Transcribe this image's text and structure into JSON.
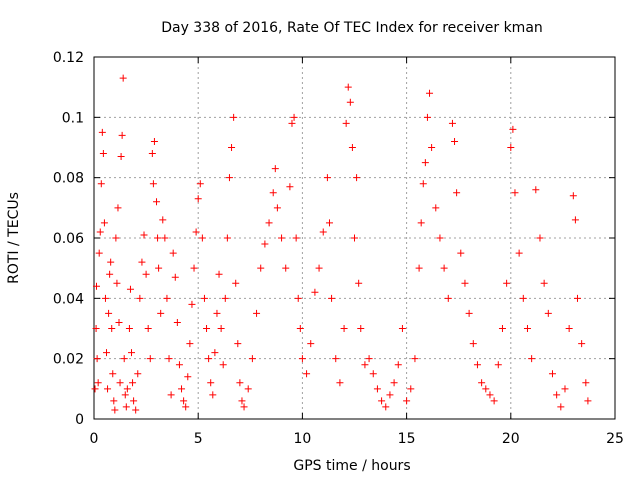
{
  "chart_data": {
    "type": "scatter",
    "title": "Day 338 of 2016, Rate Of TEC Index for receiver kman",
    "xlabel": "GPS time / hours",
    "ylabel": "ROTI / TECUs",
    "xlim": [
      0,
      25
    ],
    "ylim": [
      0,
      0.12
    ],
    "xticks": [
      0,
      5,
      10,
      15,
      20,
      25
    ],
    "xtick_labels": [
      "0",
      "5",
      "10",
      "15",
      "20",
      "25"
    ],
    "yticks": [
      0,
      0.02,
      0.04,
      0.06,
      0.08,
      0.1,
      0.12
    ],
    "ytick_labels": [
      "0",
      "0.02",
      "0.04",
      "0.06",
      "0.08",
      "0.1",
      "0.12"
    ],
    "grid": true,
    "legend": "none",
    "marker": "+",
    "color": "#ff0000",
    "points": [
      [
        0.05,
        0.01
      ],
      [
        0.1,
        0.03
      ],
      [
        0.12,
        0.044
      ],
      [
        0.15,
        0.02
      ],
      [
        0.2,
        0.012
      ],
      [
        0.25,
        0.055
      ],
      [
        0.3,
        0.062
      ],
      [
        0.35,
        0.078
      ],
      [
        0.4,
        0.095
      ],
      [
        0.45,
        0.088
      ],
      [
        0.5,
        0.065
      ],
      [
        0.55,
        0.04
      ],
      [
        0.6,
        0.022
      ],
      [
        0.65,
        0.01
      ],
      [
        0.7,
        0.035
      ],
      [
        0.75,
        0.048
      ],
      [
        0.8,
        0.052
      ],
      [
        0.85,
        0.03
      ],
      [
        0.9,
        0.015
      ],
      [
        0.95,
        0.006
      ],
      [
        1.0,
        0.003
      ],
      [
        1.05,
        0.06
      ],
      [
        1.1,
        0.045
      ],
      [
        1.15,
        0.07
      ],
      [
        1.2,
        0.032
      ],
      [
        1.25,
        0.012
      ],
      [
        1.3,
        0.087
      ],
      [
        1.35,
        0.094
      ],
      [
        1.4,
        0.113
      ],
      [
        1.45,
        0.02
      ],
      [
        1.5,
        0.008
      ],
      [
        1.55,
        0.004
      ],
      [
        1.6,
        0.01
      ],
      [
        1.7,
        0.03
      ],
      [
        1.75,
        0.043
      ],
      [
        1.8,
        0.022
      ],
      [
        1.85,
        0.012
      ],
      [
        1.9,
        0.006
      ],
      [
        2.0,
        0.003
      ],
      [
        2.1,
        0.015
      ],
      [
        2.2,
        0.04
      ],
      [
        2.3,
        0.052
      ],
      [
        2.4,
        0.061
      ],
      [
        2.5,
        0.048
      ],
      [
        2.6,
        0.03
      ],
      [
        2.7,
        0.02
      ],
      [
        2.8,
        0.088
      ],
      [
        2.85,
        0.078
      ],
      [
        2.9,
        0.092
      ],
      [
        3.0,
        0.072
      ],
      [
        3.05,
        0.06
      ],
      [
        3.1,
        0.05
      ],
      [
        3.2,
        0.035
      ],
      [
        3.3,
        0.066
      ],
      [
        3.4,
        0.06
      ],
      [
        3.5,
        0.04
      ],
      [
        3.6,
        0.02
      ],
      [
        3.7,
        0.008
      ],
      [
        3.8,
        0.055
      ],
      [
        3.9,
        0.047
      ],
      [
        4.0,
        0.032
      ],
      [
        4.1,
        0.018
      ],
      [
        4.2,
        0.01
      ],
      [
        4.3,
        0.006
      ],
      [
        4.4,
        0.004
      ],
      [
        4.5,
        0.014
      ],
      [
        4.6,
        0.025
      ],
      [
        4.7,
        0.038
      ],
      [
        4.8,
        0.05
      ],
      [
        4.9,
        0.062
      ],
      [
        5.0,
        0.073
      ],
      [
        5.1,
        0.078
      ],
      [
        5.2,
        0.06
      ],
      [
        5.3,
        0.04
      ],
      [
        5.4,
        0.03
      ],
      [
        5.5,
        0.02
      ],
      [
        5.6,
        0.012
      ],
      [
        5.7,
        0.008
      ],
      [
        5.8,
        0.022
      ],
      [
        5.9,
        0.035
      ],
      [
        6.0,
        0.048
      ],
      [
        6.1,
        0.03
      ],
      [
        6.2,
        0.018
      ],
      [
        6.3,
        0.04
      ],
      [
        6.4,
        0.06
      ],
      [
        6.5,
        0.08
      ],
      [
        6.6,
        0.09
      ],
      [
        6.7,
        0.1
      ],
      [
        6.8,
        0.045
      ],
      [
        6.9,
        0.025
      ],
      [
        7.0,
        0.012
      ],
      [
        7.1,
        0.006
      ],
      [
        7.2,
        0.004
      ],
      [
        7.4,
        0.01
      ],
      [
        7.6,
        0.02
      ],
      [
        7.8,
        0.035
      ],
      [
        8.0,
        0.05
      ],
      [
        8.2,
        0.058
      ],
      [
        8.4,
        0.065
      ],
      [
        8.6,
        0.075
      ],
      [
        8.7,
        0.083
      ],
      [
        8.8,
        0.07
      ],
      [
        9.0,
        0.06
      ],
      [
        9.2,
        0.05
      ],
      [
        9.4,
        0.077
      ],
      [
        9.5,
        0.098
      ],
      [
        9.6,
        0.1
      ],
      [
        9.7,
        0.06
      ],
      [
        9.8,
        0.04
      ],
      [
        9.9,
        0.03
      ],
      [
        10.0,
        0.02
      ],
      [
        10.2,
        0.015
      ],
      [
        10.4,
        0.025
      ],
      [
        10.6,
        0.042
      ],
      [
        10.8,
        0.05
      ],
      [
        11.0,
        0.062
      ],
      [
        11.2,
        0.08
      ],
      [
        11.3,
        0.065
      ],
      [
        11.4,
        0.04
      ],
      [
        11.6,
        0.02
      ],
      [
        11.8,
        0.012
      ],
      [
        12.0,
        0.03
      ],
      [
        12.1,
        0.098
      ],
      [
        12.2,
        0.11
      ],
      [
        12.3,
        0.105
      ],
      [
        12.4,
        0.09
      ],
      [
        12.5,
        0.06
      ],
      [
        12.6,
        0.08
      ],
      [
        12.7,
        0.045
      ],
      [
        12.8,
        0.03
      ],
      [
        13.0,
        0.018
      ],
      [
        13.2,
        0.02
      ],
      [
        13.4,
        0.015
      ],
      [
        13.6,
        0.01
      ],
      [
        13.8,
        0.006
      ],
      [
        14.0,
        0.004
      ],
      [
        14.2,
        0.008
      ],
      [
        14.4,
        0.012
      ],
      [
        14.6,
        0.018
      ],
      [
        14.8,
        0.03
      ],
      [
        15.0,
        0.006
      ],
      [
        15.2,
        0.01
      ],
      [
        15.4,
        0.02
      ],
      [
        15.6,
        0.05
      ],
      [
        15.7,
        0.065
      ],
      [
        15.8,
        0.078
      ],
      [
        15.9,
        0.085
      ],
      [
        16.0,
        0.1
      ],
      [
        16.1,
        0.108
      ],
      [
        16.2,
        0.09
      ],
      [
        16.4,
        0.07
      ],
      [
        16.6,
        0.06
      ],
      [
        16.8,
        0.05
      ],
      [
        17.0,
        0.04
      ],
      [
        17.2,
        0.098
      ],
      [
        17.3,
        0.092
      ],
      [
        17.4,
        0.075
      ],
      [
        17.6,
        0.055
      ],
      [
        17.8,
        0.045
      ],
      [
        18.0,
        0.035
      ],
      [
        18.2,
        0.025
      ],
      [
        18.4,
        0.018
      ],
      [
        18.6,
        0.012
      ],
      [
        18.8,
        0.01
      ],
      [
        19.0,
        0.008
      ],
      [
        19.2,
        0.006
      ],
      [
        19.4,
        0.018
      ],
      [
        19.6,
        0.03
      ],
      [
        19.8,
        0.045
      ],
      [
        20.0,
        0.09
      ],
      [
        20.1,
        0.096
      ],
      [
        20.2,
        0.075
      ],
      [
        20.4,
        0.055
      ],
      [
        20.6,
        0.04
      ],
      [
        20.8,
        0.03
      ],
      [
        21.0,
        0.02
      ],
      [
        21.2,
        0.076
      ],
      [
        21.4,
        0.06
      ],
      [
        21.6,
        0.045
      ],
      [
        21.8,
        0.035
      ],
      [
        22.0,
        0.015
      ],
      [
        22.2,
        0.008
      ],
      [
        22.4,
        0.004
      ],
      [
        22.6,
        0.01
      ],
      [
        22.8,
        0.03
      ],
      [
        23.0,
        0.074
      ],
      [
        23.1,
        0.066
      ],
      [
        23.2,
        0.04
      ],
      [
        23.4,
        0.025
      ],
      [
        23.6,
        0.012
      ],
      [
        23.7,
        0.006
      ]
    ]
  }
}
